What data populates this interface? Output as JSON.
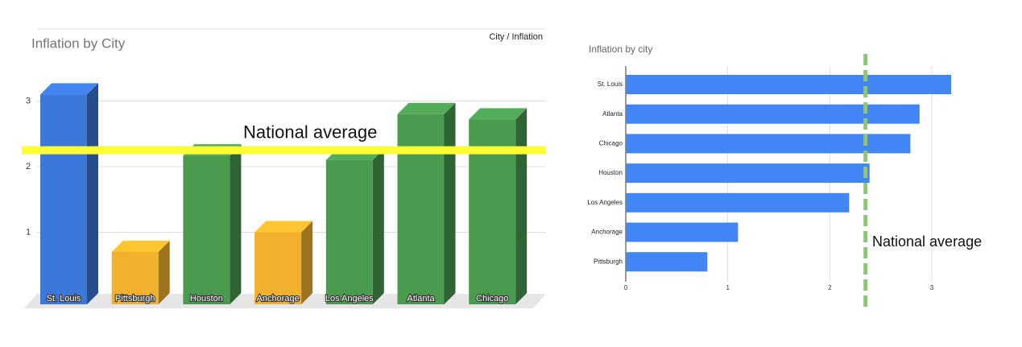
{
  "chart_data": [
    {
      "type": "bar3d",
      "title": "Inflation by City",
      "categories": [
        "St. Louis",
        "Pittsburgh",
        "Houston",
        "Anchorage",
        "Los Angeles",
        "Atlanta",
        "Chicago"
      ],
      "series": [
        {
          "name": "City / Inflation",
          "values": [
            3.1,
            0.7,
            2.17,
            1.0,
            2.1,
            2.8,
            2.72
          ],
          "colors": [
            "#3c78d8",
            "#f1b12c",
            "#4a9a50",
            "#f1b12c",
            "#4a9a50",
            "#4a9a50",
            "#4a9a50"
          ]
        }
      ],
      "ylim": [
        0,
        4
      ],
      "yticks": [
        1,
        2,
        3
      ],
      "grid": true,
      "annotation": {
        "text": "National average",
        "value": 2.25,
        "color": "#ffff33"
      }
    },
    {
      "type": "hbar",
      "title": "Inflation by city",
      "categories": [
        "St. Louis",
        "Atlanta",
        "Chicago",
        "Houston",
        "Los Angeles",
        "Anchorage",
        "Pittsburgh"
      ],
      "values": [
        3.19,
        2.88,
        2.79,
        2.39,
        2.19,
        1.1,
        0.8
      ],
      "color": "#4285f4",
      "xlim": [
        0,
        3.3
      ],
      "xticks": [
        0,
        1,
        2,
        3
      ],
      "grid": true,
      "annotation": {
        "text": "National average",
        "value": 2.35,
        "color": "#93c47d"
      }
    }
  ]
}
